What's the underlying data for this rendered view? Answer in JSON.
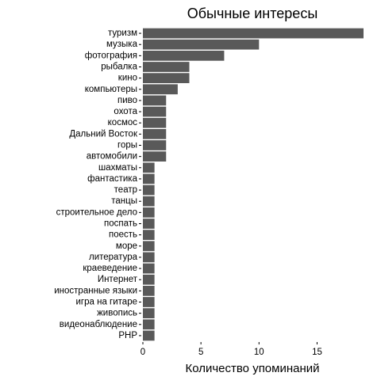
{
  "chart_data": {
    "type": "bar",
    "orientation": "horizontal",
    "title": "Обычные интересы",
    "xlabel": "Количество упоминаний",
    "ylabel": "",
    "xlim": [
      0,
      19
    ],
    "xticks": [
      "0",
      "5",
      "10",
      "15"
    ],
    "grid": false,
    "bar_color": "#595959",
    "categories": [
      "туризм",
      "музыка",
      "фотография",
      "рыбалка",
      "кино",
      "компьютеры",
      "пиво",
      "охота",
      "космос",
      "Дальний Восток",
      "горы",
      "автомобили",
      "шахматы",
      "фантастика",
      "театр",
      "танцы",
      "строительное дело",
      "поспать",
      "поесть",
      "море",
      "литература",
      "краеведение",
      "Интернет",
      "иностранные языки",
      "игра на гитаре",
      "живопись",
      "видеонаблюдение",
      "PHP"
    ],
    "values": [
      19,
      10,
      7,
      4,
      4,
      3,
      2,
      2,
      2,
      2,
      2,
      2,
      1,
      1,
      1,
      1,
      1,
      1,
      1,
      1,
      1,
      1,
      1,
      1,
      1,
      1,
      1,
      1
    ]
  }
}
